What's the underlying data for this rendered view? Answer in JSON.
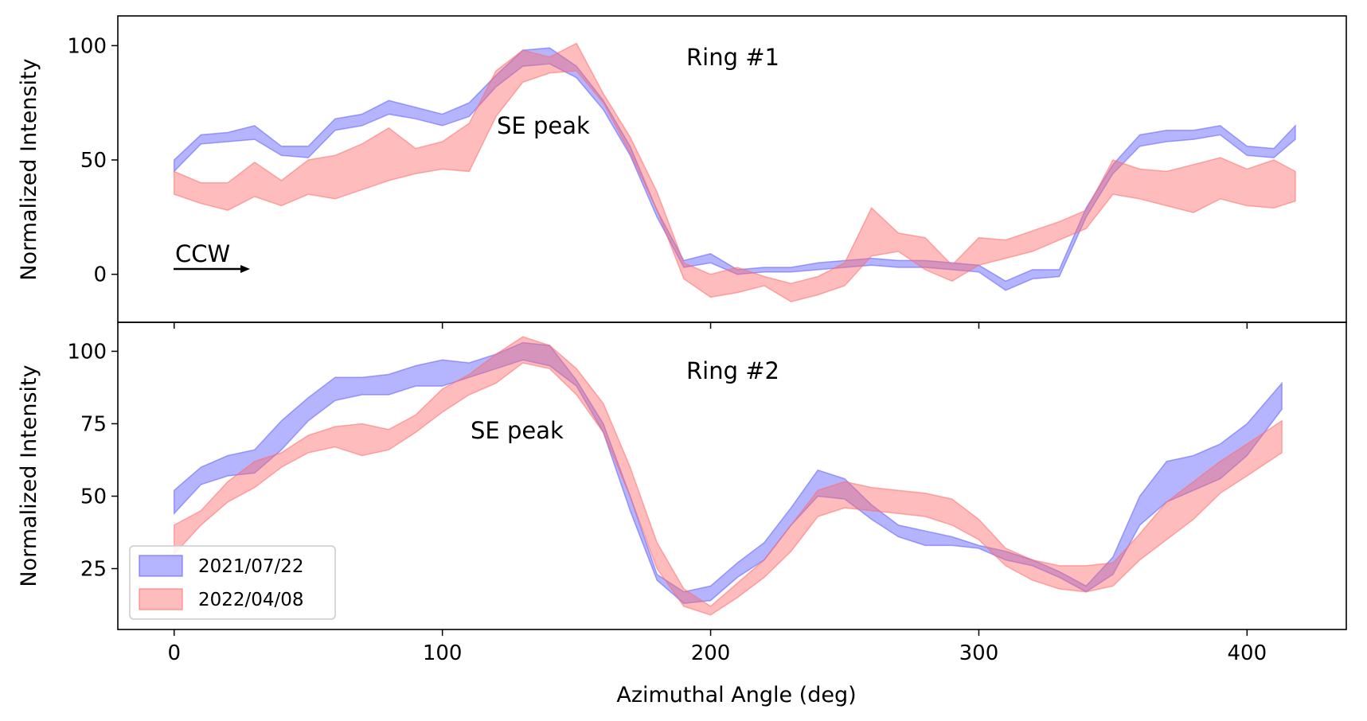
{
  "chart_data": [
    {
      "type": "area",
      "panel_label": "Ring #1",
      "annotations": [
        "SE peak",
        "CCW"
      ],
      "xlabel": "",
      "ylabel": "Normalized Intensity",
      "xlim": [
        -21,
        437
      ],
      "ylim": [
        -21,
        113
      ],
      "xticks": [
        0,
        100,
        200,
        300,
        400
      ],
      "yticks": [
        0,
        50,
        100
      ],
      "xtick_labels_shown": false,
      "series": [
        {
          "name": "2021/07/22",
          "color": "#5b5bff",
          "x": [
            0,
            10,
            20,
            30,
            40,
            50,
            60,
            70,
            80,
            90,
            100,
            110,
            120,
            130,
            140,
            150,
            160,
            170,
            180,
            190,
            200,
            210,
            220,
            230,
            240,
            250,
            260,
            270,
            280,
            290,
            300,
            310,
            320,
            330,
            340,
            350,
            360,
            370,
            380,
            390,
            400,
            410,
            418
          ],
          "lower": [
            45,
            57,
            58,
            59,
            52,
            51,
            63,
            65,
            70,
            68,
            65,
            69,
            82,
            91,
            92,
            86,
            72,
            52,
            25,
            3,
            5,
            0,
            1,
            1,
            2,
            3,
            4,
            3,
            3,
            2,
            1,
            -7,
            -2,
            -1,
            25,
            44,
            56,
            58,
            59,
            61,
            52,
            51,
            59
          ],
          "upper": [
            50,
            61,
            62,
            65,
            56,
            56,
            68,
            70,
            76,
            73,
            70,
            75,
            87,
            98,
            99,
            91,
            76,
            56,
            28,
            6,
            9,
            2,
            3,
            3,
            5,
            6,
            7,
            6,
            6,
            5,
            4,
            -3,
            2,
            2,
            29,
            48,
            61,
            63,
            63,
            65,
            56,
            55,
            65
          ]
        },
        {
          "name": "2022/04/08",
          "color": "#ff6b6b",
          "x": [
            0,
            10,
            20,
            30,
            40,
            50,
            60,
            70,
            80,
            90,
            100,
            110,
            120,
            130,
            140,
            150,
            160,
            170,
            180,
            190,
            200,
            210,
            220,
            230,
            240,
            250,
            260,
            270,
            280,
            290,
            300,
            310,
            320,
            330,
            340,
            350,
            360,
            370,
            380,
            390,
            400,
            410,
            418
          ],
          "lower": [
            35,
            31,
            28,
            34,
            30,
            35,
            33,
            37,
            41,
            44,
            46,
            45,
            69,
            84,
            88,
            89,
            75,
            53,
            28,
            -2,
            -10,
            -8,
            -5,
            -12,
            -9,
            -5,
            8,
            10,
            2,
            -3,
            4,
            7,
            10,
            15,
            20,
            35,
            33,
            30,
            27,
            33,
            30,
            29,
            32
          ],
          "upper": [
            45,
            40,
            40,
            49,
            41,
            50,
            52,
            57,
            64,
            55,
            58,
            66,
            89,
            98,
            95,
            101,
            79,
            60,
            36,
            5,
            0,
            3,
            -1,
            -4,
            -1,
            5,
            29,
            18,
            16,
            4,
            16,
            15,
            19,
            23,
            28,
            50,
            46,
            45,
            48,
            51,
            46,
            50,
            45
          ]
        }
      ]
    },
    {
      "type": "area",
      "panel_label": "Ring #2",
      "annotations": [
        "SE peak"
      ],
      "xlabel": "Azimuthal Angle (deg)",
      "ylabel": "Normalized Intensity",
      "xlim": [
        -21,
        437
      ],
      "ylim": [
        4,
        110
      ],
      "xticks": [
        0,
        100,
        200,
        300,
        400
      ],
      "yticks": [
        25,
        50,
        75,
        100
      ],
      "xtick_labels_shown": true,
      "legend": {
        "position": "lower-left",
        "entries": [
          "2021/07/22",
          "2022/04/08"
        ]
      },
      "series": [
        {
          "name": "2021/07/22",
          "color": "#5b5bff",
          "x": [
            0,
            10,
            20,
            30,
            40,
            50,
            60,
            70,
            80,
            90,
            100,
            110,
            120,
            130,
            140,
            150,
            160,
            170,
            180,
            190,
            200,
            210,
            220,
            230,
            240,
            250,
            260,
            270,
            280,
            290,
            300,
            310,
            320,
            330,
            340,
            350,
            360,
            370,
            380,
            390,
            400,
            413
          ],
          "lower": [
            44,
            54,
            57,
            58,
            66,
            76,
            83,
            85,
            85,
            88,
            88,
            91,
            94,
            97,
            95,
            88,
            72,
            45,
            21,
            13,
            14,
            22,
            28,
            40,
            50,
            49,
            42,
            36,
            33,
            33,
            32,
            28,
            26,
            22,
            17,
            23,
            40,
            48,
            52,
            56,
            64,
            80
          ],
          "upper": [
            52,
            60,
            64,
            66,
            76,
            84,
            91,
            91,
            92,
            95,
            97,
            96,
            99,
            103,
            102,
            90,
            75,
            50,
            23,
            17,
            19,
            27,
            34,
            46,
            59,
            56,
            47,
            40,
            38,
            36,
            33,
            31,
            28,
            24,
            19,
            29,
            50,
            62,
            64,
            68,
            75,
            89
          ]
        },
        {
          "name": "2022/04/08",
          "color": "#ff6b6b",
          "x": [
            0,
            10,
            20,
            30,
            40,
            50,
            60,
            70,
            80,
            90,
            100,
            110,
            120,
            130,
            140,
            150,
            160,
            170,
            180,
            190,
            200,
            210,
            220,
            230,
            240,
            250,
            260,
            270,
            280,
            290,
            300,
            310,
            320,
            330,
            340,
            350,
            360,
            370,
            380,
            390,
            400,
            413
          ],
          "lower": [
            30,
            40,
            48,
            53,
            60,
            65,
            67,
            64,
            66,
            72,
            79,
            85,
            89,
            96,
            94,
            85,
            72,
            50,
            25,
            12,
            9,
            15,
            22,
            31,
            43,
            46,
            45,
            44,
            43,
            40,
            35,
            26,
            21,
            18,
            17,
            19,
            28,
            35,
            42,
            51,
            57,
            65
          ],
          "upper": [
            40,
            45,
            55,
            62,
            65,
            71,
            74,
            75,
            73,
            78,
            87,
            92,
            99,
            105,
            102,
            94,
            82,
            60,
            34,
            18,
            12,
            20,
            28,
            40,
            52,
            55,
            53,
            52,
            51,
            49,
            42,
            32,
            28,
            26,
            26,
            27,
            37,
            48,
            55,
            62,
            68,
            76
          ]
        }
      ]
    }
  ]
}
